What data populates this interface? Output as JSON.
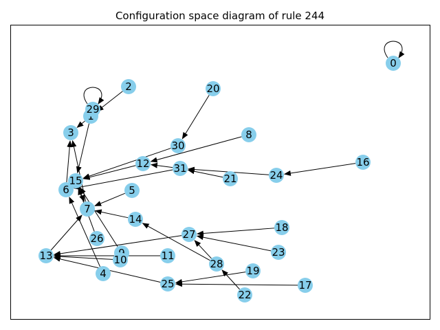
{
  "title": "Configuration space diagram of rule 244",
  "colors": {
    "node": "#87ceeb",
    "edge": "#000000",
    "frame": "#000000",
    "background": "#ffffff"
  },
  "nodes": [
    {
      "id": "0",
      "label": "0"
    },
    {
      "id": "1",
      "label": "1"
    },
    {
      "id": "2",
      "label": "2"
    },
    {
      "id": "3",
      "label": "3"
    },
    {
      "id": "4",
      "label": "4"
    },
    {
      "id": "5",
      "label": "5"
    },
    {
      "id": "6",
      "label": "6"
    },
    {
      "id": "7",
      "label": "7"
    },
    {
      "id": "8",
      "label": "8"
    },
    {
      "id": "9",
      "label": "9"
    },
    {
      "id": "10",
      "label": "10"
    },
    {
      "id": "11",
      "label": "11"
    },
    {
      "id": "12",
      "label": "12"
    },
    {
      "id": "13",
      "label": "13"
    },
    {
      "id": "14",
      "label": "14"
    },
    {
      "id": "15",
      "label": "15"
    },
    {
      "id": "16",
      "label": "16"
    },
    {
      "id": "17",
      "label": "17"
    },
    {
      "id": "18",
      "label": "18"
    },
    {
      "id": "19",
      "label": "19"
    },
    {
      "id": "20",
      "label": "20"
    },
    {
      "id": "21",
      "label": "21"
    },
    {
      "id": "22",
      "label": "22"
    },
    {
      "id": "23",
      "label": "23"
    },
    {
      "id": "24",
      "label": "24"
    },
    {
      "id": "25",
      "label": "25"
    },
    {
      "id": "26",
      "label": "26"
    },
    {
      "id": "27",
      "label": "27"
    },
    {
      "id": "28",
      "label": "28"
    },
    {
      "id": "29",
      "label": "29"
    },
    {
      "id": "30",
      "label": "30"
    },
    {
      "id": "31",
      "label": "31"
    }
  ],
  "edges": [
    {
      "from": "0",
      "to": "0"
    },
    {
      "from": "29",
      "to": "29"
    },
    {
      "from": "2",
      "to": "1"
    },
    {
      "from": "1",
      "to": "3"
    },
    {
      "from": "1",
      "to": "15"
    },
    {
      "from": "6",
      "to": "3"
    },
    {
      "from": "7",
      "to": "3"
    },
    {
      "from": "20",
      "to": "30"
    },
    {
      "from": "30",
      "to": "15"
    },
    {
      "from": "8",
      "to": "12"
    },
    {
      "from": "12",
      "to": "15"
    },
    {
      "from": "31",
      "to": "12"
    },
    {
      "from": "31",
      "to": "6"
    },
    {
      "from": "21",
      "to": "31"
    },
    {
      "from": "24",
      "to": "31"
    },
    {
      "from": "16",
      "to": "24"
    },
    {
      "from": "15",
      "to": "7"
    },
    {
      "from": "26",
      "to": "15"
    },
    {
      "from": "5",
      "to": "7"
    },
    {
      "from": "14",
      "to": "7"
    },
    {
      "from": "9",
      "to": "15"
    },
    {
      "from": "13",
      "to": "7"
    },
    {
      "from": "4",
      "to": "6"
    },
    {
      "from": "10",
      "to": "13"
    },
    {
      "from": "11",
      "to": "13"
    },
    {
      "from": "27",
      "to": "13"
    },
    {
      "from": "25",
      "to": "13"
    },
    {
      "from": "18",
      "to": "27"
    },
    {
      "from": "23",
      "to": "27"
    },
    {
      "from": "28",
      "to": "27"
    },
    {
      "from": "28",
      "to": "14"
    },
    {
      "from": "22",
      "to": "28"
    },
    {
      "from": "19",
      "to": "25"
    },
    {
      "from": "17",
      "to": "25"
    }
  ]
}
